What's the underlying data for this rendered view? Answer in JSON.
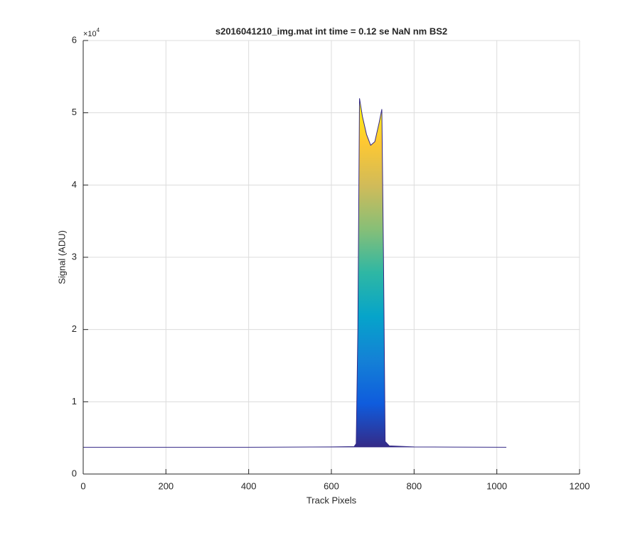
{
  "chart_data": {
    "type": "area",
    "title": "s2016041210_img.mat int time = 0.12 se  NaN nm BS2",
    "x_label": "Track Pixels",
    "y_label": "Signal (ADU)",
    "y_exponent_base": "×10",
    "y_exponent": "4",
    "xlim": [
      0,
      1200
    ],
    "xticks": [
      0,
      200,
      400,
      600,
      800,
      1000,
      1200
    ],
    "ylim": [
      0,
      60000
    ],
    "yticks": [
      {
        "value": 0,
        "label": "0"
      },
      {
        "value": 10000,
        "label": "1"
      },
      {
        "value": 20000,
        "label": "2"
      },
      {
        "value": 30000,
        "label": "3"
      },
      {
        "value": 40000,
        "label": "4"
      },
      {
        "value": 50000,
        "label": "5"
      },
      {
        "value": 60000,
        "label": "6"
      }
    ],
    "grid": true,
    "colormap": [
      "#352a87",
      "#0f5cdd",
      "#1481d6",
      "#06a4ca",
      "#2eb7a4",
      "#87bf77",
      "#d1bb59",
      "#fec832",
      "#f9fb0e"
    ],
    "x": [
      0,
      200,
      400,
      600,
      655,
      660,
      664,
      668,
      675,
      685,
      695,
      705,
      715,
      722,
      726,
      730,
      740,
      800,
      1023
    ],
    "values": [
      3700,
      3700,
      3700,
      3750,
      3800,
      4200,
      20000,
      52000,
      49500,
      47000,
      45500,
      46000,
      48500,
      50500,
      30000,
      4500,
      3900,
      3750,
      3700
    ]
  }
}
